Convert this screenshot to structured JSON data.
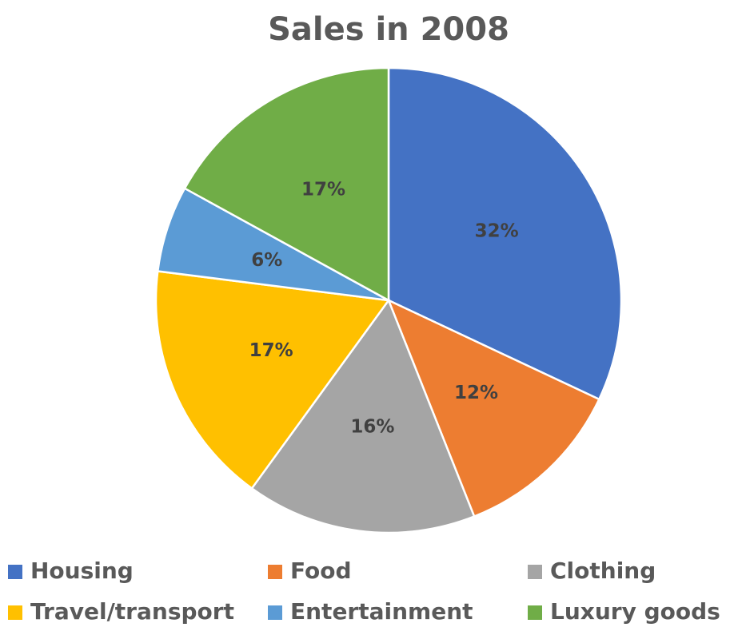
{
  "chart_data": {
    "type": "pie",
    "title": "Sales in 2008",
    "categories": [
      "Housing",
      "Food",
      "Clothing",
      "Travel/transport",
      "Entertainment",
      "Luxury goods"
    ],
    "values": [
      32,
      12,
      16,
      17,
      6,
      17
    ],
    "data_labels": [
      "32%",
      "12%",
      "16%",
      "17%",
      "6%",
      "17%"
    ],
    "colors": [
      "#4472C4",
      "#ED7D31",
      "#A5A5A5",
      "#FFC000",
      "#5B9BD5",
      "#70AD47"
    ],
    "start_angle_deg": 0,
    "direction": "clockwise",
    "legend_placement": "bottom"
  }
}
